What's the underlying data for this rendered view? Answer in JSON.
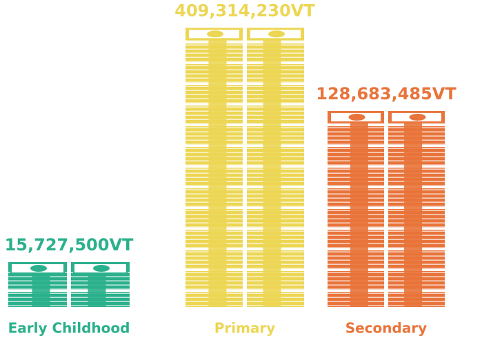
{
  "chart_data": {
    "type": "pictograph",
    "categories": [
      "Early Childhood",
      "Primary",
      "Secondary"
    ],
    "values": [
      15727500,
      409314230,
      128683485
    ],
    "value_labels": [
      "15,727,500VT",
      "409,314,230VT",
      "128,683,485VT"
    ],
    "colors": [
      "#2bb08c",
      "#ecd654",
      "#e8743b"
    ],
    "log_scale": true
  }
}
